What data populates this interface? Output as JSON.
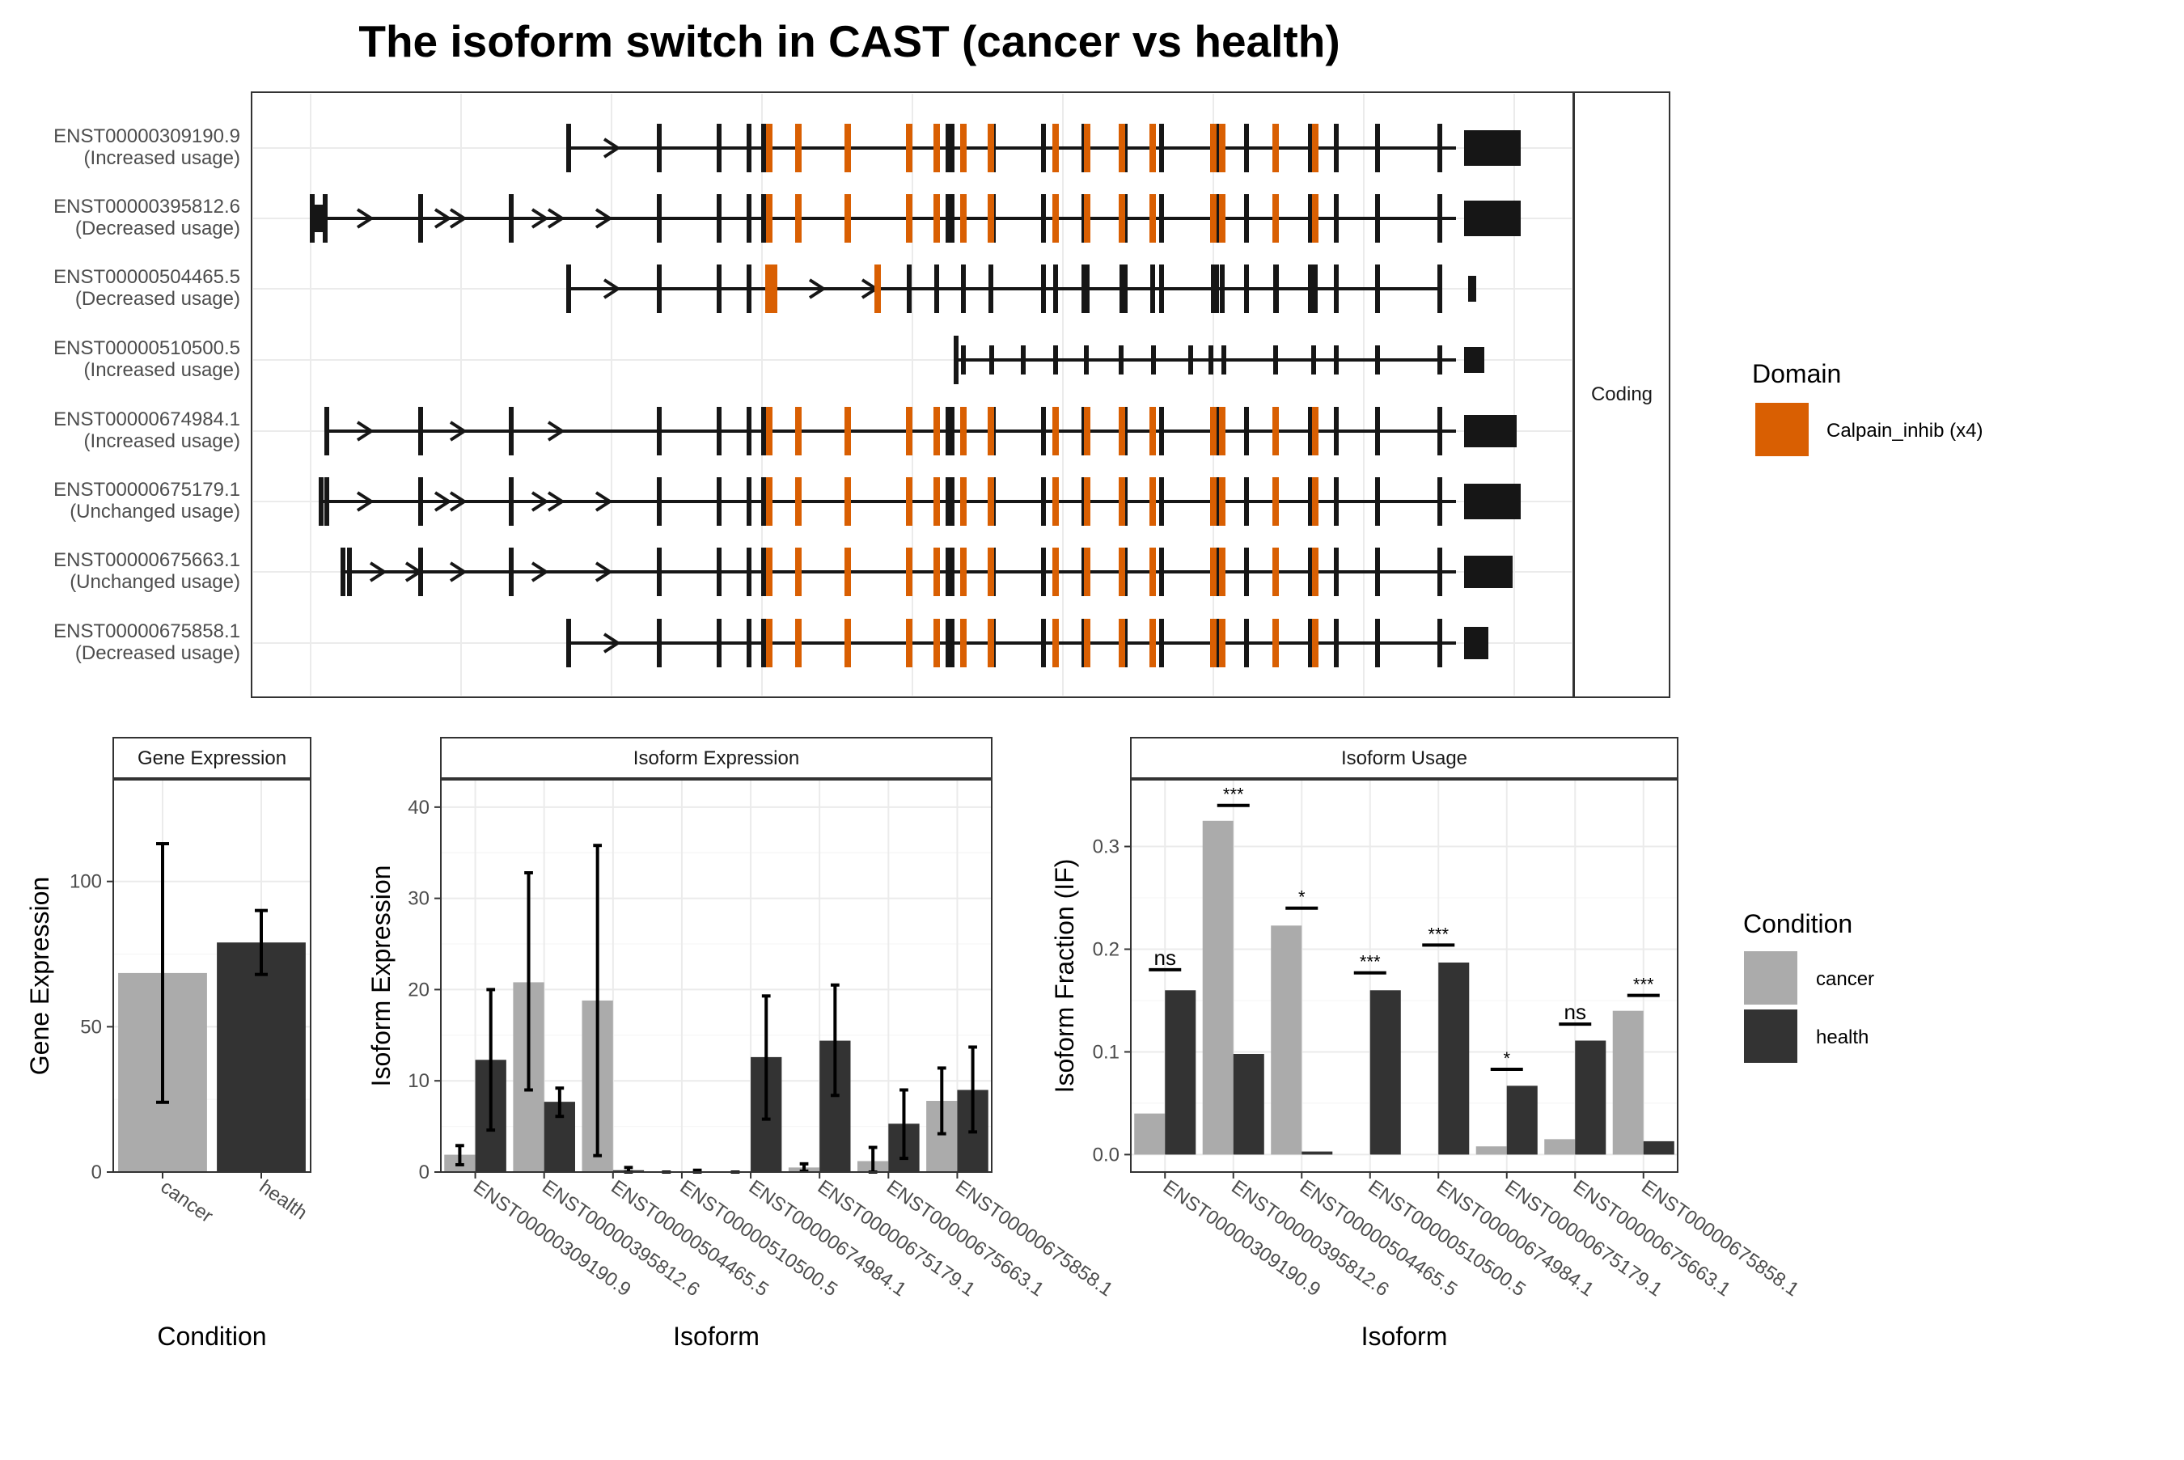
{
  "title": "The isoform switch in CAST (cancer vs health)",
  "colors": {
    "domain": "#D95F02",
    "exon": "#161616",
    "cancer": "#ABABAB",
    "health": "#333333",
    "grid": "#EBEBEB",
    "panel_border": "#333333"
  },
  "structure_panel": {
    "facet_label": "Coding",
    "legend": {
      "title": "Domain",
      "items": [
        {
          "label": "Calpain_inhib (x4)",
          "color": "#D95F02"
        }
      ]
    },
    "transcripts": [
      {
        "id": "ENST00000309190.9",
        "usage": "(Increased usage)"
      },
      {
        "id": "ENST00000395812.6",
        "usage": "(Decreased usage)"
      },
      {
        "id": "ENST00000504465.5",
        "usage": "(Decreased usage)"
      },
      {
        "id": "ENST00000510500.5",
        "usage": "(Increased usage)"
      },
      {
        "id": "ENST00000674984.1",
        "usage": "(Increased usage)"
      },
      {
        "id": "ENST00000675179.1",
        "usage": "(Unchanged usage)"
      },
      {
        "id": "ENST00000675663.1",
        "usage": "(Unchanged usage)"
      },
      {
        "id": "ENST00000675858.1",
        "usage": "(Decreased usage)"
      }
    ]
  },
  "chart_data": [
    {
      "type": "bar",
      "facet": "Gene Expression",
      "xlabel": "Condition",
      "ylabel": "Gene Expression",
      "categories": [
        "cancer",
        "health"
      ],
      "values": [
        68.5,
        79
      ],
      "error_low": [
        24,
        68
      ],
      "error_high": [
        113,
        90
      ],
      "ylim": [
        0,
        135
      ],
      "yticks": [
        0,
        50,
        100
      ]
    },
    {
      "type": "bar",
      "facet": "Isoform Expression",
      "xlabel": "Isoform",
      "ylabel": "Isoform Expression",
      "categories": [
        "ENST00000309190.9",
        "ENST00000395812.6",
        "ENST00000504465.5",
        "ENST00000510500.5",
        "ENST00000674984.1",
        "ENST00000675179.1",
        "ENST00000675663.1",
        "ENST00000675858.1"
      ],
      "ylim": [
        0,
        43
      ],
      "yticks": [
        0,
        10,
        20,
        30,
        40
      ],
      "series": [
        {
          "name": "cancer",
          "values": [
            1.9,
            20.8,
            18.8,
            0,
            0,
            0.5,
            1.2,
            7.8
          ],
          "error_low": [
            0.8,
            9,
            1.8,
            0,
            0,
            0.1,
            0,
            4.2
          ],
          "error_high": [
            2.9,
            32.8,
            35.8,
            0,
            0,
            0.9,
            2.7,
            11.4
          ]
        },
        {
          "name": "health",
          "values": [
            12.3,
            7.7,
            0.2,
            0,
            12.6,
            14.4,
            5.3,
            9.0
          ],
          "error_low": [
            4.6,
            6.1,
            0,
            0,
            5.8,
            8.4,
            1.5,
            4.4
          ],
          "error_high": [
            20.0,
            9.2,
            0.5,
            0.2,
            19.3,
            20.5,
            9.0,
            13.7
          ]
        }
      ],
      "legend": {
        "title": "Condition",
        "position": "right"
      }
    },
    {
      "type": "bar",
      "facet": "Isoform Usage",
      "xlabel": "Isoform",
      "ylabel": "Isoform Fraction (IF)",
      "categories": [
        "ENST00000309190.9",
        "ENST00000395812.6",
        "ENST00000504465.5",
        "ENST00000510500.5",
        "ENST00000674984.1",
        "ENST00000675179.1",
        "ENST00000675663.1",
        "ENST00000675858.1"
      ],
      "ylim": [
        -0.017,
        0.365
      ],
      "yticks": [
        0.0,
        0.1,
        0.2,
        0.3
      ],
      "ytick_labels": [
        "0.0",
        "0.1",
        "0.2",
        "0.3"
      ],
      "series": [
        {
          "name": "cancer",
          "values": [
            0.04,
            0.325,
            0.223,
            0.0,
            0.0,
            0.008,
            0.015,
            0.14
          ]
        },
        {
          "name": "health",
          "values": [
            0.16,
            0.098,
            0.003,
            0.16,
            0.187,
            0.067,
            0.111,
            0.013
          ]
        }
      ],
      "significance": [
        "ns",
        "***",
        "*",
        "***",
        "***",
        "*",
        "ns",
        "***"
      ],
      "significance_level": [
        0.18,
        0.34,
        0.24,
        0.177,
        0.204,
        0.083,
        0.127,
        0.155
      ]
    }
  ],
  "condition_legend": {
    "title": "Condition",
    "items": [
      {
        "label": "cancer",
        "color": "#ABABAB"
      },
      {
        "label": "health",
        "color": "#333333"
      }
    ]
  }
}
